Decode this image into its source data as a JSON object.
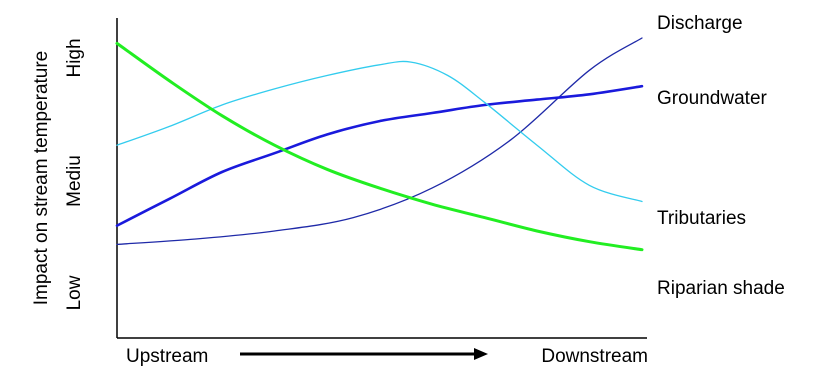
{
  "chart_data": {
    "type": "line",
    "title": "",
    "xlabel": "",
    "ylabel": "Impact on stream temperature",
    "x_range": [
      0,
      100
    ],
    "y_range": [
      0,
      100
    ],
    "x_tick_labels": {
      "start": "Upstream",
      "end": "Downstream"
    },
    "y_tick_labels": [
      "Low",
      "Mediu",
      "High"
    ],
    "legend": "line-end labels on the right",
    "grid": false,
    "series": [
      {
        "name": "Discharge",
        "color": "#1f2aa8",
        "points": [
          [
            0,
            23
          ],
          [
            15,
            25
          ],
          [
            30,
            28
          ],
          [
            45,
            33
          ],
          [
            60,
            44
          ],
          [
            75,
            62
          ],
          [
            90,
            88
          ],
          [
            100,
            100
          ]
        ]
      },
      {
        "name": "Groundwater",
        "color": "#1a1adc",
        "points": [
          [
            0,
            30
          ],
          [
            10,
            40
          ],
          [
            20,
            50
          ],
          [
            30,
            57
          ],
          [
            40,
            64
          ],
          [
            50,
            69
          ],
          [
            60,
            72
          ],
          [
            70,
            75
          ],
          [
            80,
            77
          ],
          [
            90,
            79
          ],
          [
            100,
            82
          ]
        ]
      },
      {
        "name": "Tributaries",
        "color": "#33ccee",
        "points": [
          [
            0,
            60
          ],
          [
            10,
            67
          ],
          [
            20,
            75
          ],
          [
            30,
            81
          ],
          [
            40,
            86
          ],
          [
            50,
            90
          ],
          [
            56,
            91
          ],
          [
            63,
            86
          ],
          [
            70,
            76
          ],
          [
            80,
            60
          ],
          [
            90,
            45
          ],
          [
            100,
            39
          ]
        ]
      },
      {
        "name": "Riparian shade",
        "color": "#22ee22",
        "points": [
          [
            0,
            98
          ],
          [
            10,
            84
          ],
          [
            20,
            71
          ],
          [
            30,
            60
          ],
          [
            40,
            51
          ],
          [
            50,
            44
          ],
          [
            60,
            38
          ],
          [
            70,
            33
          ],
          [
            80,
            28
          ],
          [
            90,
            24
          ],
          [
            100,
            21
          ]
        ]
      }
    ]
  }
}
